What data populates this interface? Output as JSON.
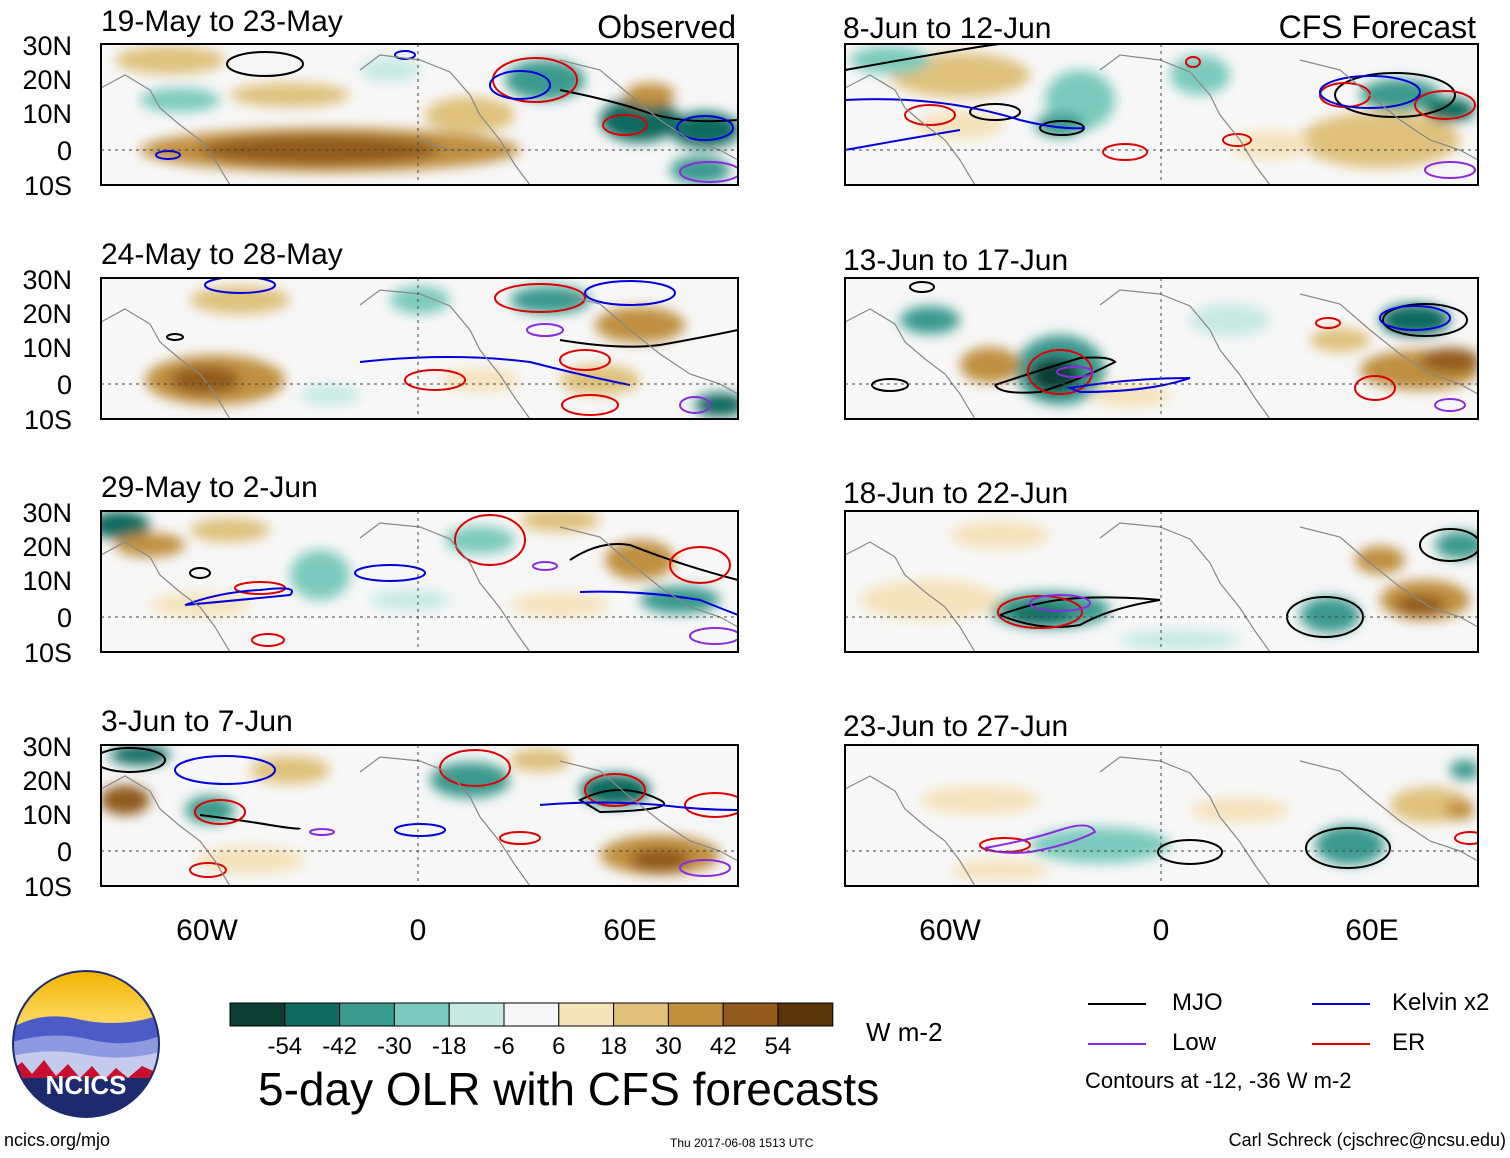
{
  "header": {
    "left_label": "Observed",
    "right_label": "CFS Forecast"
  },
  "panels": {
    "observed": [
      {
        "title": "19-May to 23-May"
      },
      {
        "title": "24-May to 28-May"
      },
      {
        "title": "29-May to 2-Jun"
      },
      {
        "title": "3-Jun to 7-Jun"
      }
    ],
    "forecast": [
      {
        "title": "8-Jun to 12-Jun"
      },
      {
        "title": "13-Jun to 17-Jun"
      },
      {
        "title": "18-Jun to 22-Jun"
      },
      {
        "title": "23-Jun to 27-Jun"
      }
    ]
  },
  "axes": {
    "lat_labels": [
      "30N",
      "20N",
      "10N",
      "0",
      "10S"
    ],
    "lon_labels": [
      "60W",
      "0",
      "60E"
    ]
  },
  "colorbar": {
    "colors": [
      "#0b3d35",
      "#0f6b5f",
      "#3a9a8d",
      "#7ccabd",
      "#c6e9e2",
      "#f7f7f7",
      "#f4e3bb",
      "#dfc17c",
      "#c0903f",
      "#925a1c",
      "#5a3509"
    ],
    "labels": [
      "-54",
      "-42",
      "-30",
      "-18",
      "-6",
      "6",
      "18",
      "30",
      "42",
      "54"
    ],
    "unit": "W m-2"
  },
  "legend": {
    "items": [
      {
        "label": "MJO",
        "color": "#000000"
      },
      {
        "label": "Kelvin x2",
        "color": "#0000dd"
      },
      {
        "label": "Low",
        "color": "#8a2be2"
      },
      {
        "label": "ER",
        "color": "#dd0000"
      }
    ],
    "note": "Contours at -12, -36 W m-2"
  },
  "title": "5-day OLR with CFS forecasts",
  "logo_text": "NCICS",
  "footer": {
    "left": "ncics.org/mjo",
    "center": "Thu 2017-06-08 1513 UTC",
    "right": "Carl Schreck (cjschrec@ncsu.edu)"
  }
}
